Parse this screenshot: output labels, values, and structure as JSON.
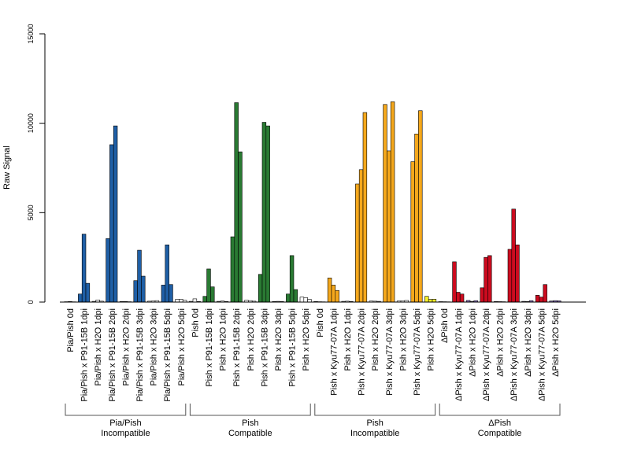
{
  "chart_data": {
    "type": "bar",
    "ylabel": "Raw Signal",
    "ylim": [
      0,
      15000
    ],
    "yticks": [
      "0",
      "5000",
      "10000",
      "15000"
    ],
    "bars_per_category": 3,
    "categories": [
      {
        "label": "Pia/Pish 0d",
        "values": [
          20,
          30,
          15
        ],
        "color": "#ffffff"
      },
      {
        "label": "Pia/Pish x P91-15B 1dpi",
        "values": [
          450,
          3800,
          1050
        ],
        "color": "#1f5fa6"
      },
      {
        "label": "Pia/Pish x H2O 1dpi",
        "values": [
          40,
          120,
          50
        ],
        "color": "#ffffff"
      },
      {
        "label": "Pia/Pish x P91-15B 2dpi",
        "values": [
          3550,
          8800,
          9850
        ],
        "color": "#1f5fa6"
      },
      {
        "label": "Pia/Pish x H2O 2dpi",
        "values": [
          30,
          30,
          20
        ],
        "color": "#ffffff"
      },
      {
        "label": "Pia/Pish x P91-15B 3dpi",
        "values": [
          1200,
          2900,
          1450
        ],
        "color": "#1f5fa6"
      },
      {
        "label": "Pia/Pish x H2O 3dpi",
        "values": [
          50,
          60,
          80
        ],
        "color": "#ffffff"
      },
      {
        "label": "Pia/Pish x P91-15B 5dpi",
        "values": [
          950,
          3200,
          980
        ],
        "color": "#1f5fa6"
      },
      {
        "label": "Pia/Pish x H2O 5dpi",
        "values": [
          150,
          160,
          100
        ],
        "color": "#ffffff"
      },
      {
        "label": "Pish 0d",
        "values": [
          40,
          180,
          30
        ],
        "color": "#ffffff"
      },
      {
        "label": "Pish x P91-15B 1dpi",
        "values": [
          320,
          1850,
          850
        ],
        "color": "#2a7a33"
      },
      {
        "label": "Pish x H2O 1dpi",
        "values": [
          40,
          60,
          30
        ],
        "color": "#ffffff"
      },
      {
        "label": "Pish x P91-15B 2dpi",
        "values": [
          3650,
          11150,
          8400
        ],
        "color": "#2a7a33"
      },
      {
        "label": "Pish x H2O 2dpi",
        "values": [
          100,
          80,
          50
        ],
        "color": "#ffffff"
      },
      {
        "label": "Pish x P91-15B 3dpi",
        "values": [
          1550,
          10050,
          9850
        ],
        "color": "#2a7a33"
      },
      {
        "label": "Pish x H2O 3dpi",
        "values": [
          30,
          40,
          30
        ],
        "color": "#ffffff"
      },
      {
        "label": "Pish x P91-15B 5dpi",
        "values": [
          450,
          2600,
          700
        ],
        "color": "#2a7a33"
      },
      {
        "label": "Pish x H2O 5dpi",
        "values": [
          280,
          250,
          150
        ],
        "color": "#ffffff"
      },
      {
        "label": "Pish 0d",
        "values": [
          30,
          20,
          15
        ],
        "color": "#ffffff"
      },
      {
        "label": "Pish x Kyu77-07A 1dpi",
        "values": [
          1350,
          950,
          650
        ],
        "color": "#f5a81c"
      },
      {
        "label": "Pish x H2O 1dpi",
        "values": [
          40,
          50,
          30
        ],
        "color": "#ffffff"
      },
      {
        "label": "Pish x Kyu77-07A 2dpi",
        "values": [
          6600,
          7400,
          10600
        ],
        "color": "#f5a81c"
      },
      {
        "label": "Pish x H2O 2dpi",
        "values": [
          60,
          50,
          40
        ],
        "color": "#ffffff"
      },
      {
        "label": "Pish x Kyu77-07A 3dpi",
        "values": [
          11050,
          8450,
          11200
        ],
        "color": "#f5a81c"
      },
      {
        "label": "Pish x H2O 3dpi",
        "values": [
          60,
          70,
          90
        ],
        "color": "#ffffff"
      },
      {
        "label": "Pish x Kyu77-07A 5dpi",
        "values": [
          7850,
          9400,
          10700
        ],
        "color": "#f5a81c"
      },
      {
        "label": "Pish x H2O 5dpi",
        "values": [
          320,
          150,
          160
        ],
        "color": "#f7f22a"
      },
      {
        "label": "ΔPish 0d",
        "values": [
          25,
          20,
          15
        ],
        "color": "#ffffff"
      },
      {
        "label": "ΔPish x Kyu77-07A 1dpi",
        "values": [
          2250,
          550,
          450
        ],
        "color": "#cc0b1f"
      },
      {
        "label": "ΔPish x H2O 1dpi",
        "values": [
          90,
          40,
          80
        ],
        "color": "#8a6fc0"
      },
      {
        "label": "ΔPish x Kyu77-07A 2dpi",
        "values": [
          800,
          2500,
          2600
        ],
        "color": "#cc0b1f"
      },
      {
        "label": "ΔPish x H2O 2dpi",
        "values": [
          30,
          25,
          20
        ],
        "color": "#8a6fc0"
      },
      {
        "label": "ΔPish x Kyu77-07A 3dpi",
        "values": [
          2950,
          5200,
          3200
        ],
        "color": "#cc0b1f"
      },
      {
        "label": "ΔPish x H2O 3dpi",
        "values": [
          40,
          30,
          80
        ],
        "color": "#8a6fc0"
      },
      {
        "label": "ΔPish x Kyu77-07A 5dpi",
        "values": [
          380,
          280,
          980
        ],
        "color": "#cc0b1f"
      },
      {
        "label": "ΔPish x H2O 5dpi",
        "values": [
          60,
          80,
          70
        ],
        "color": "#8a6fc0"
      }
    ],
    "groups": [
      {
        "name": "Pia/Pish",
        "sub": "Incompatible",
        "first": 0,
        "last": 8
      },
      {
        "name": "Pish",
        "sub": "Compatible",
        "first": 9,
        "last": 17
      },
      {
        "name": "Pish",
        "sub": "Incompatible",
        "first": 18,
        "last": 26
      },
      {
        "name": "ΔPish",
        "sub": "Compatible",
        "first": 27,
        "last": 35
      }
    ],
    "grid": false,
    "legend": "none"
  }
}
